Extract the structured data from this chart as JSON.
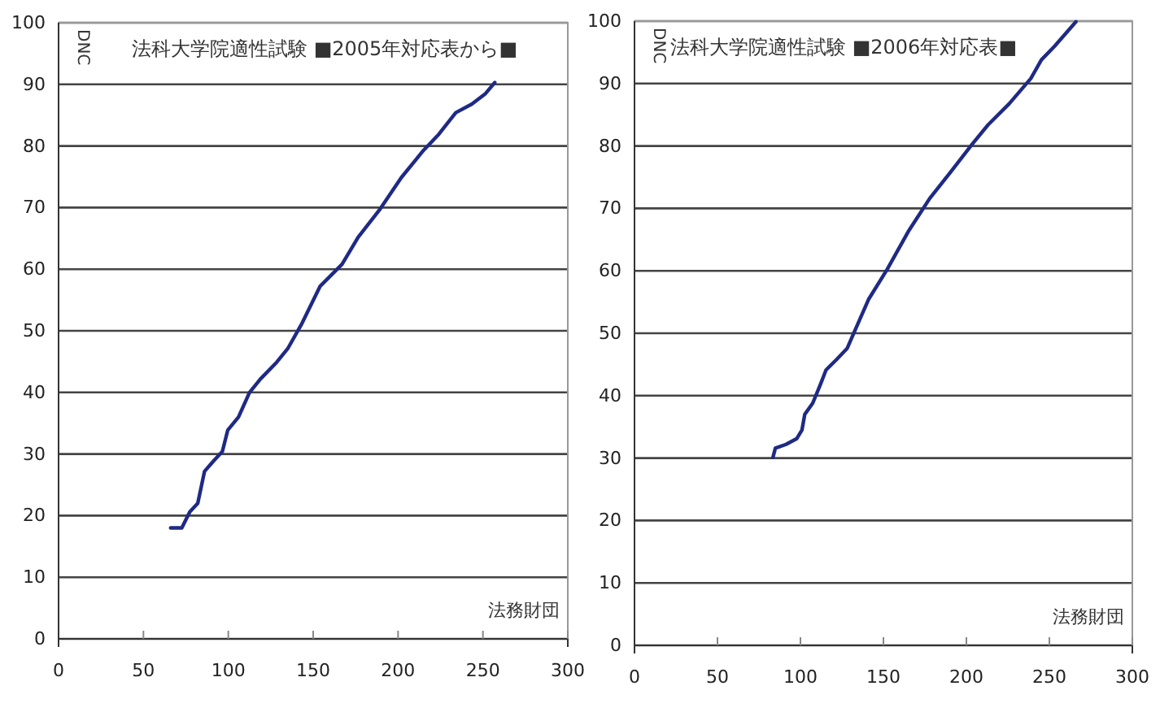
{
  "chart_data": [
    {
      "type": "line",
      "title": "法科大学院適性試験 ■2005年対応表から■",
      "xlabel": "法務財団",
      "ylabel": "DNC",
      "xlim": [
        0,
        300
      ],
      "xticks": [
        0,
        50,
        100,
        150,
        200,
        250,
        300
      ],
      "ylim": [
        0,
        100
      ],
      "yticks": [
        0,
        10,
        20,
        30,
        40,
        50,
        60,
        70,
        80,
        90,
        100
      ],
      "grid": "y",
      "marker": "none",
      "line_style": "solid",
      "series": [
        {
          "color": "#1f2a85",
          "x": [
            66,
            72.6,
            77.3,
            82,
            86,
            91.7,
            96.5,
            99.7,
            106,
            112.5,
            119,
            128.5,
            135,
            143,
            154,
            167,
            176.5,
            189,
            202,
            215,
            224,
            234,
            243.5,
            251.5,
            257
          ],
          "values": [
            18,
            18,
            20.6,
            22,
            27.2,
            29,
            30.4,
            33.9,
            36,
            40,
            42.2,
            44.9,
            47.1,
            51,
            57.2,
            60.8,
            65.2,
            69.6,
            74.9,
            79.3,
            81.9,
            85.4,
            86.8,
            88.5,
            90.3
          ]
        }
      ]
    },
    {
      "type": "line",
      "title": "法科大学院適性試験 ■2006年対応表■",
      "xlabel": "法務財団",
      "ylabel": "DNC",
      "xlim": [
        0,
        300
      ],
      "xticks": [
        0,
        50,
        100,
        150,
        200,
        250,
        300
      ],
      "ylim": [
        0,
        100
      ],
      "yticks": [
        0,
        10,
        20,
        30,
        40,
        50,
        60,
        70,
        80,
        90,
        100
      ],
      "grid": "y",
      "marker": "none",
      "line_style": "solid",
      "series": [
        {
          "color": "#1f2a85",
          "x": [
            83.4,
            84.9,
            91.3,
            97.7,
            100.9,
            102.6,
            107.4,
            112.2,
            115.4,
            121.8,
            128.2,
            134.6,
            141,
            152.2,
            165,
            177.9,
            190.7,
            203.5,
            213.1,
            225.9,
            238.8,
            245.2,
            253.2,
            266
          ],
          "values": [
            30.1,
            31.6,
            32.2,
            33.1,
            34.5,
            37,
            38.8,
            41.9,
            44.1,
            45.8,
            47.6,
            51.5,
            55.4,
            60.2,
            66.3,
            71.6,
            75.9,
            80.3,
            83.4,
            86.8,
            90.8,
            93.8,
            96,
            99.9
          ]
        }
      ]
    }
  ]
}
